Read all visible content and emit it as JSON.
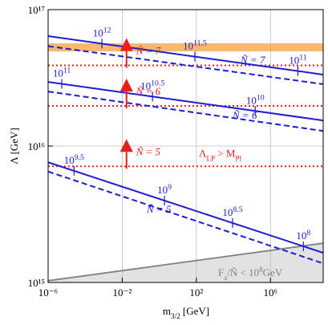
{
  "chart_data": {
    "type": "line",
    "xlabel": [
      {
        "t": "m"
      },
      {
        "t": "3/2",
        "sub": true
      },
      {
        "t": " [GeV]"
      }
    ],
    "ylabel": [
      {
        "t": "Λ [GeV]"
      }
    ],
    "log_x": true,
    "log_y": true,
    "grid": true,
    "xlim": [
      1e-06,
      700000000.0
    ],
    "ylim": [
      1000000000000000.0,
      1e+17
    ],
    "xticks": [
      {
        "value": 1e-06,
        "label": "10⁻⁶"
      },
      {
        "value": 0.01,
        "label": "10⁻²"
      },
      {
        "value": 100,
        "label": "10²"
      },
      {
        "value": 1000000,
        "label": "10⁶"
      }
    ],
    "yticks": [
      {
        "value": 1000000000000000.0,
        "label": "10¹⁵"
      },
      {
        "value": 1e+16,
        "label": "10¹⁶"
      },
      {
        "value": 1e+17,
        "label": "10¹⁷"
      }
    ],
    "x": [
      1e-06,
      700000000.0
    ],
    "series": [
      {
        "color": "#1c1cd4",
        "dash": false,
        "values": [
          6.4e+16,
          3.34e+16
        ]
      },
      {
        "color": "#1c1cd4",
        "dash": true,
        "values": [
          5.4e+16,
          2.84e+16
        ]
      },
      {
        "color": "#1c1cd4",
        "dash": false,
        "values": [
          2.95e+16,
          1.54e+16
        ]
      },
      {
        "color": "#1c1cd4",
        "dash": true,
        "values": [
          2.51e+16,
          1.29e+16
        ]
      },
      {
        "color": "#1c1cd4",
        "dash": false,
        "values": [
          7600000000000000.0,
          1650000000000000.0
        ]
      },
      {
        "color": "#1c1cd4",
        "dash": true,
        "values": [
          6500000000000000.0,
          1380000000000000.0
        ]
      }
    ],
    "bound_lines": {
      "color": "#e8201a",
      "values": [
        3.9e+16,
        1.97e+16,
        7100000000000000.0
      ]
    },
    "band": {
      "color": "#f5a040",
      "values": [
        4.94e+16,
        5.66e+16
      ]
    },
    "excluded": {
      "color": "#e2e2e2",
      "edge": "#808080",
      "values": [
        1030000000000000.0,
        1940000000000000.0
      ]
    },
    "mass_markers": [
      {
        "series": 0,
        "x": 0.0008,
        "base": "10",
        "exp": "12"
      },
      {
        "series": 0,
        "x": 83,
        "base": "10",
        "exp": "11.5"
      },
      {
        "series": 0,
        "x": 30000000,
        "base": "10",
        "exp": "11"
      },
      {
        "series": 2,
        "x": 5.5e-06,
        "base": "10",
        "exp": "11"
      },
      {
        "series": 2,
        "x": 0.43,
        "base": "10",
        "exp": "10.5"
      },
      {
        "series": 2,
        "x": 150000,
        "base": "10",
        "exp": "10"
      },
      {
        "series": 4,
        "x": 2.5e-05,
        "base": "10",
        "exp": "9.5"
      },
      {
        "series": 4,
        "x": 1.9,
        "base": "10",
        "exp": "9"
      },
      {
        "series": 4,
        "x": 9000,
        "base": "10",
        "exp": "8.5"
      },
      {
        "series": 4,
        "x": 60000000,
        "base": "10",
        "exp": "8"
      }
    ],
    "line_labels": [
      "Ñ = 7",
      "Ñ = 6",
      "Ñ = 5"
    ],
    "bound_labels": [
      "Ñ = 7",
      "Ñ = 6",
      "Ñ = 5"
    ],
    "bound_note": [
      {
        "t": "Λ"
      },
      {
        "t": "LP",
        "sub": true
      },
      {
        "t": " > M"
      },
      {
        "t": "Pl",
        "sub": true
      }
    ],
    "excluded_note": [
      {
        "t": "F"
      },
      {
        "t": "a",
        "sub": true
      },
      {
        "t": "/Ñ < 10"
      },
      {
        "t": "8",
        "sup": true
      },
      {
        "t": "GeV"
      }
    ]
  }
}
